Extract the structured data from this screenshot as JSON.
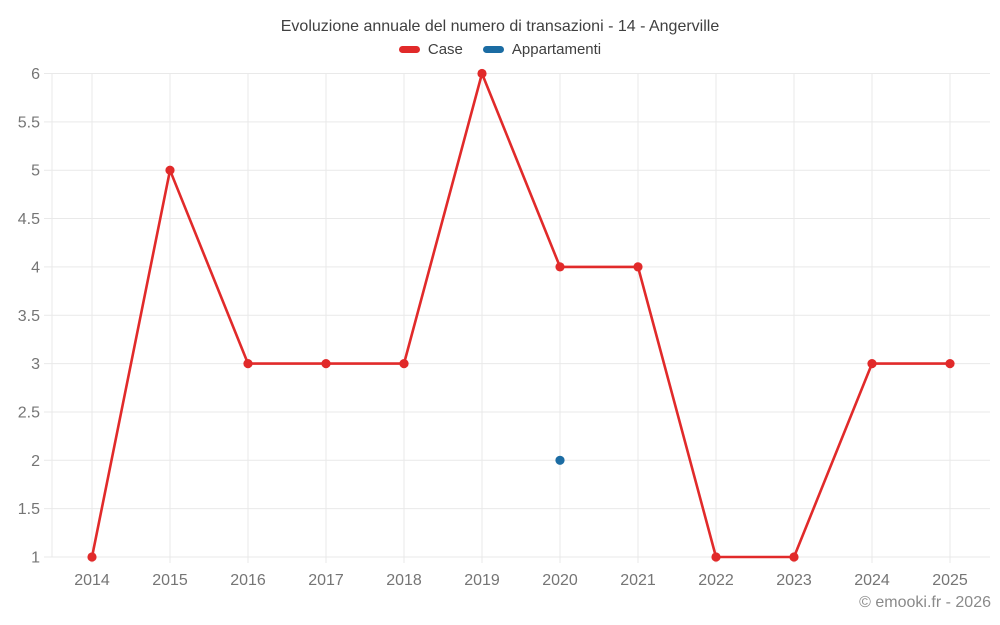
{
  "chart_data": {
    "type": "line",
    "title": "Evoluzione annuale del numero di transazioni - 14 - Angerville",
    "x": [
      "2014",
      "2015",
      "2016",
      "2017",
      "2018",
      "2019",
      "2020",
      "2021",
      "2022",
      "2023",
      "2024",
      "2025"
    ],
    "series": [
      {
        "name": "Case",
        "color": "#e12a2a",
        "marker": "circle",
        "values": [
          1,
          5,
          3,
          3,
          3,
          6,
          4,
          4,
          1,
          1,
          3,
          3
        ]
      },
      {
        "name": "Appartamenti",
        "color": "#1b6ca3",
        "marker": "circle",
        "values": [
          null,
          null,
          null,
          null,
          null,
          null,
          2,
          null,
          null,
          null,
          null,
          null
        ]
      }
    ],
    "xlabel": "",
    "ylabel": "",
    "ylim": [
      1,
      6
    ],
    "ytick_step": 0.5,
    "grid": true,
    "legend_position": "top",
    "footer": "© emooki.fr - 2026",
    "colors": {
      "grid": "#e9e9e9",
      "tick_label": "#757575",
      "title": "#404040",
      "footer": "#8a8a8a"
    }
  }
}
